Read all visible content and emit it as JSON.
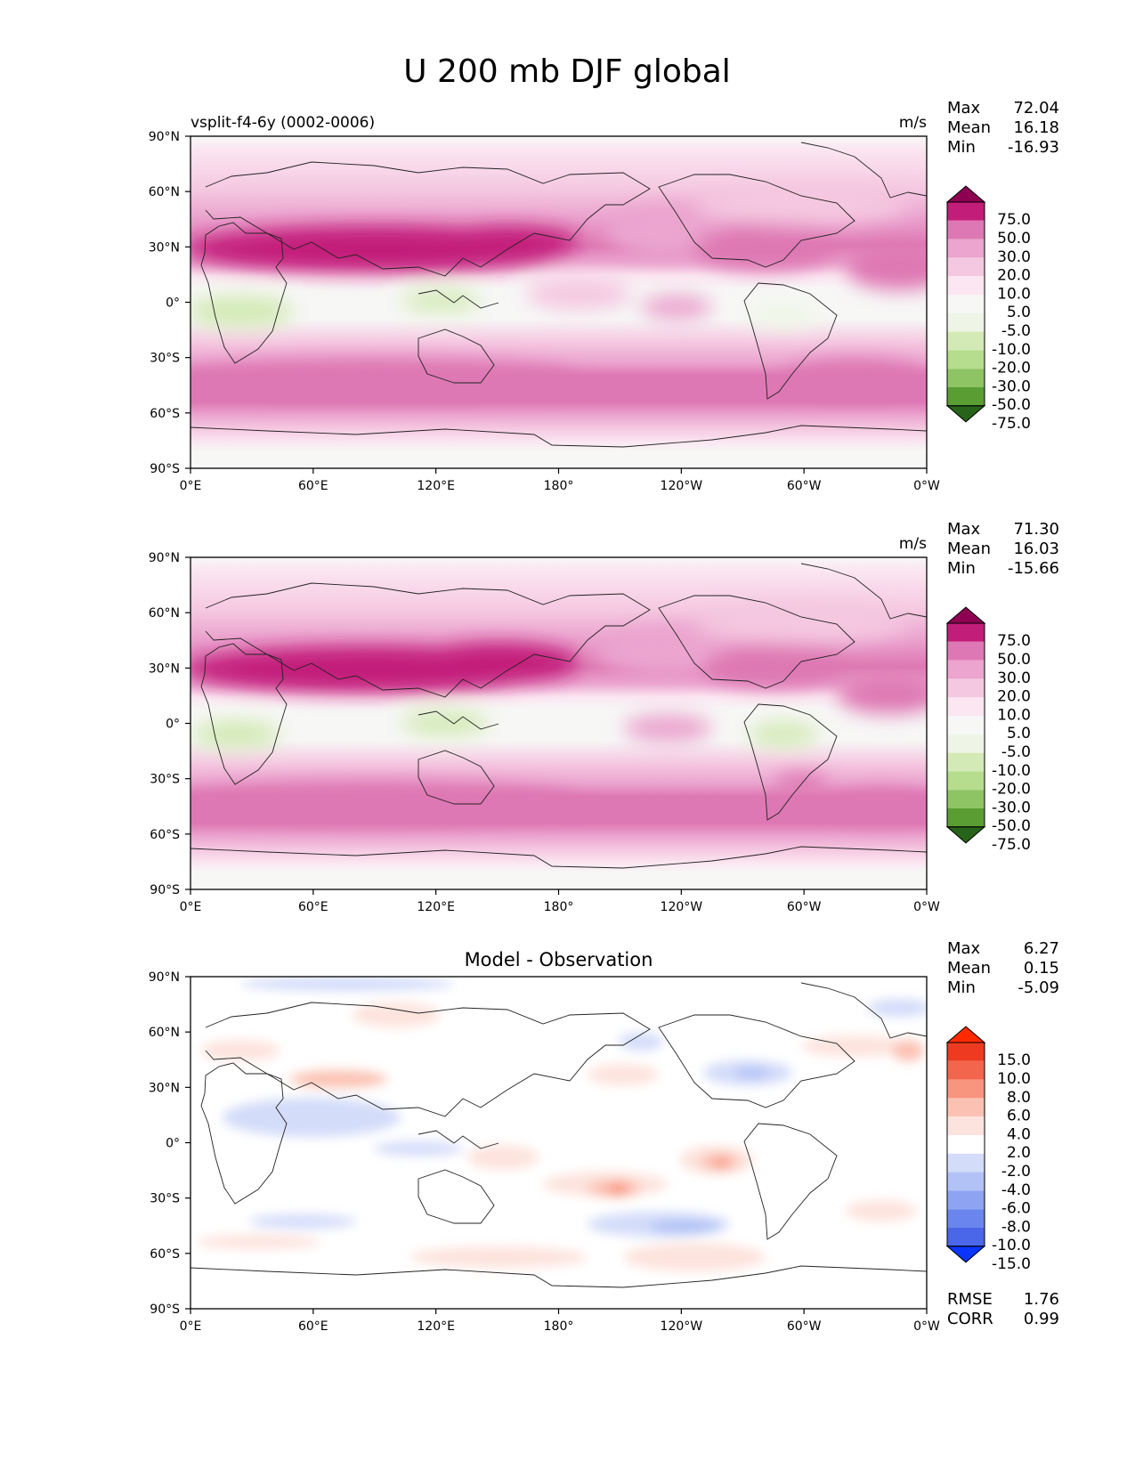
{
  "figure": {
    "title": "U 200 mb DJF global"
  },
  "colors": {
    "pos_levels": [
      "#fbe6f1",
      "#f5c8e1",
      "#eba5cf",
      "#de78b4",
      "#c31d7a",
      "#8e0152"
    ],
    "neg_levels": [
      "#eef5e6",
      "#d3eab6",
      "#b6dc8e",
      "#8fc465",
      "#5a9e33",
      "#27641a"
    ],
    "neutral": "#f7f7f6",
    "diff_pos": [
      "#fde3dd",
      "#fbc2b4",
      "#f8957f",
      "#f3664d",
      "#ee3a21",
      "#ff2a00"
    ],
    "diff_neg": [
      "#d3dcf9",
      "#b2c2f6",
      "#8ea4f2",
      "#6b85ee",
      "#4a67ea",
      "#0a35ff"
    ],
    "coast": "#222222"
  },
  "panels": [
    {
      "id": "test",
      "left_title": "vsplit-f4-6y (0002-0006)",
      "center_title": "",
      "units": "m/s",
      "stats": [
        {
          "label": "Max",
          "value": "72.04"
        },
        {
          "label": "Mean",
          "value": "16.18"
        },
        {
          "label": "Min",
          "value": "-16.93"
        }
      ],
      "colorbar_labels": [
        "75.0",
        "50.0",
        "30.0",
        "20.0",
        "10.0",
        "5.0",
        "-5.0",
        "-10.0",
        "-20.0",
        "-30.0",
        "-50.0",
        "-75.0"
      ],
      "extra_stats": []
    },
    {
      "id": "reference",
      "left_title": "",
      "center_title": "",
      "units": "m/s",
      "stats": [
        {
          "label": "Max",
          "value": "71.30"
        },
        {
          "label": "Mean",
          "value": "16.03"
        },
        {
          "label": "Min",
          "value": "-15.66"
        }
      ],
      "colorbar_labels": [
        "75.0",
        "50.0",
        "30.0",
        "20.0",
        "10.0",
        "5.0",
        "-5.0",
        "-10.0",
        "-20.0",
        "-30.0",
        "-50.0",
        "-75.0"
      ],
      "extra_stats": []
    },
    {
      "id": "difference",
      "left_title": "",
      "center_title": "Model - Observation",
      "units": "",
      "stats": [
        {
          "label": "Max",
          "value": "6.27"
        },
        {
          "label": "Mean",
          "value": "0.15"
        },
        {
          "label": "Min",
          "value": "-5.09"
        }
      ],
      "colorbar_labels": [
        "15.0",
        "10.0",
        "8.0",
        "6.0",
        "4.0",
        "2.0",
        "-2.0",
        "-4.0",
        "-6.0",
        "-8.0",
        "-10.0",
        "-15.0"
      ],
      "extra_stats": [
        {
          "label": "RMSE",
          "value": "1.76"
        },
        {
          "label": "CORR",
          "value": "0.99"
        }
      ]
    }
  ],
  "axes": {
    "x_ticks": [
      "0°E",
      "60°E",
      "120°E",
      "180°",
      "120°W",
      "60°W",
      "0°W"
    ],
    "y_ticks": [
      "90°N",
      "60°N",
      "30°N",
      "0°",
      "30°S",
      "60°S",
      "90°S"
    ]
  },
  "chart_data": [
    {
      "type": "heatmap",
      "title": "vsplit-f4-6y (0002-0006)",
      "units": "m/s",
      "x_range": [
        0,
        360
      ],
      "y_range": [
        -90,
        90
      ],
      "x_ticks": [
        "0°E",
        "60°E",
        "120°E",
        "180°",
        "120°W",
        "60°W",
        "0°W"
      ],
      "y_ticks": [
        "90°N",
        "60°N",
        "30°N",
        "0°",
        "30°S",
        "60°S",
        "90°S"
      ],
      "levels": [
        -75,
        -50,
        -30,
        -20,
        -10,
        -5,
        5,
        10,
        20,
        30,
        50,
        75
      ],
      "max": 72.04,
      "mean": 16.18,
      "min": -16.93,
      "features": [
        {
          "name": "subtropical jet NH (Asia)",
          "lon": [
            20,
            170
          ],
          "lat": [
            25,
            37
          ],
          "value": 55
        },
        {
          "name": "jet NH (N. America)",
          "lon": [
            235,
            300
          ],
          "lat": [
            25,
            42
          ],
          "value": 45
        },
        {
          "name": "jet NH (Atlantic)",
          "lon": [
            310,
            350
          ],
          "lat": [
            10,
            25
          ],
          "value": 40
        },
        {
          "name": "SH westerlies",
          "lon": [
            0,
            360
          ],
          "lat": [
            -60,
            -35
          ],
          "value": 35
        },
        {
          "name": "easterlies Africa",
          "lon": [
            0,
            50
          ],
          "lat": [
            -10,
            10
          ],
          "value": -12
        },
        {
          "name": "easterlies Maritime Continent",
          "lon": [
            100,
            150
          ],
          "lat": [
            -5,
            5
          ],
          "value": -12
        },
        {
          "name": "easterlies S. America",
          "lon": [
            280,
            320
          ],
          "lat": [
            -10,
            0
          ],
          "value": -8
        }
      ]
    },
    {
      "type": "heatmap",
      "title": "",
      "units": "m/s",
      "x_range": [
        0,
        360
      ],
      "y_range": [
        -90,
        90
      ],
      "x_ticks": [
        "0°E",
        "60°E",
        "120°E",
        "180°",
        "120°W",
        "60°W",
        "0°W"
      ],
      "y_ticks": [
        "90°N",
        "60°N",
        "30°N",
        "0°",
        "30°S",
        "60°S",
        "90°S"
      ],
      "levels": [
        -75,
        -50,
        -30,
        -20,
        -10,
        -5,
        5,
        10,
        20,
        30,
        50,
        75
      ],
      "max": 71.3,
      "mean": 16.03,
      "min": -15.66,
      "features": [
        {
          "name": "subtropical jet NH (Asia)",
          "lon": [
            20,
            170
          ],
          "lat": [
            25,
            37
          ],
          "value": 55
        },
        {
          "name": "jet NH (N. America)",
          "lon": [
            245,
            305
          ],
          "lat": [
            25,
            40
          ],
          "value": 45
        },
        {
          "name": "jet NH (Atlantic)",
          "lon": [
            320,
            355
          ],
          "lat": [
            10,
            25
          ],
          "value": 40
        },
        {
          "name": "SH westerlies",
          "lon": [
            0,
            360
          ],
          "lat": [
            -60,
            -35
          ],
          "value": 35
        },
        {
          "name": "easterlies Africa",
          "lon": [
            0,
            40
          ],
          "lat": [
            -10,
            5
          ],
          "value": -12
        },
        {
          "name": "easterlies Maritime Continent",
          "lon": [
            110,
            155
          ],
          "lat": [
            -5,
            8
          ],
          "value": -12
        },
        {
          "name": "easterlies S. America",
          "lon": [
            285,
            325
          ],
          "lat": [
            -10,
            0
          ],
          "value": -8
        }
      ]
    },
    {
      "type": "heatmap",
      "title": "Model - Observation",
      "units": "",
      "x_range": [
        0,
        360
      ],
      "y_range": [
        -90,
        90
      ],
      "x_ticks": [
        "0°E",
        "60°E",
        "120°E",
        "180°",
        "120°W",
        "60°W",
        "0°W"
      ],
      "y_ticks": [
        "90°N",
        "60°N",
        "30°N",
        "0°",
        "30°S",
        "60°S",
        "90°S"
      ],
      "levels": [
        -15,
        -10,
        -8,
        -6,
        -4,
        -2,
        2,
        4,
        6,
        8,
        10,
        15
      ],
      "max": 6.27,
      "mean": 0.15,
      "min": -5.09,
      "rmse": 1.76,
      "corr": 0.99,
      "features": [
        {
          "name": "positive anomaly central Pacific",
          "lon": [
            190,
            215
          ],
          "lat": [
            -25,
            -15
          ],
          "value": 5
        },
        {
          "name": "positive anomaly eastern Pacific",
          "lon": [
            245,
            275
          ],
          "lat": [
            -15,
            -5
          ],
          "value": 5
        },
        {
          "name": "negative anomaly SE Pacific",
          "lon": [
            230,
            265
          ],
          "lat": [
            -40,
            -32
          ],
          "value": -4
        },
        {
          "name": "negative anomaly N. America",
          "lon": [
            255,
            285
          ],
          "lat": [
            25,
            35
          ],
          "value": -4
        },
        {
          "name": "negative anomaly Arabian Sea/India",
          "lon": [
            30,
            110
          ],
          "lat": [
            -5,
            25
          ],
          "value": -2
        },
        {
          "name": "positive anomaly Asia jet",
          "lon": [
            50,
            100
          ],
          "lat": [
            30,
            38
          ],
          "value": 3
        }
      ]
    }
  ]
}
